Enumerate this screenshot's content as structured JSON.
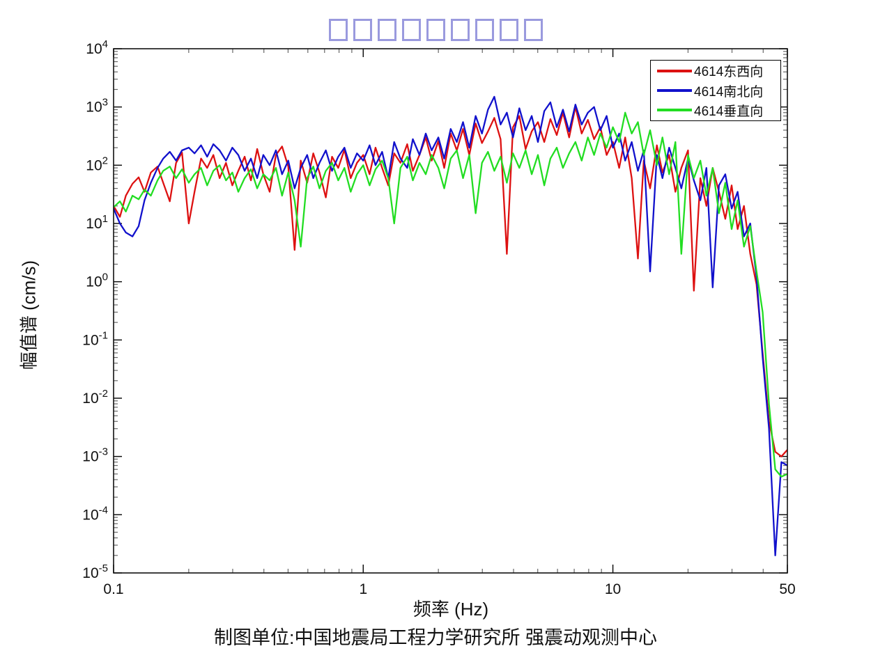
{
  "title": {
    "text": "",
    "note": "title rendered as missing-glyph boxes",
    "glyph_box_count": 9,
    "glyph_box_color": "#9a9ade"
  },
  "axes": {
    "xlabel": "频率 (Hz)",
    "ylabel": "幅值谱 (cm/s)"
  },
  "caption": "制图单位:中国地震局工程力学研究所 强震动观测中心",
  "legend": {
    "entries": [
      {
        "label": "4614东西向",
        "color": "#dd1111"
      },
      {
        "label": "4614南北向",
        "color": "#1111cc"
      },
      {
        "label": "4614垂直向",
        "color": "#22dd22"
      }
    ]
  },
  "colors": {
    "axis": "#111111",
    "minor_tick": "#666666",
    "text": "#111111",
    "background": "#ffffff"
  },
  "chart_data": {
    "type": "line",
    "title": "",
    "xlabel": "频率 (Hz)",
    "ylabel": "幅值谱 (cm/s)",
    "x_scale": "log",
    "y_scale": "log",
    "xlim": [
      0.1,
      50
    ],
    "ylim": [
      1e-05,
      10000
    ],
    "grid": false,
    "legend_position": "top-right",
    "x_major_ticks": [
      0.1,
      1,
      10,
      50
    ],
    "x_tick_labels": [
      "0.1",
      "1",
      "10",
      "50"
    ],
    "y_tick_exponents": [
      4,
      3,
      2,
      1,
      0,
      -1,
      -2,
      -3,
      -4,
      -5
    ],
    "frequencies_hz": [
      0.1,
      0.106,
      0.112,
      0.119,
      0.126,
      0.133,
      0.141,
      0.15,
      0.158,
      0.168,
      0.178,
      0.188,
      0.2,
      0.211,
      0.224,
      0.237,
      0.251,
      0.266,
      0.282,
      0.299,
      0.316,
      0.335,
      0.355,
      0.376,
      0.398,
      0.422,
      0.447,
      0.473,
      0.501,
      0.531,
      0.562,
      0.596,
      0.631,
      0.668,
      0.708,
      0.75,
      0.794,
      0.841,
      0.891,
      0.944,
      1.0,
      1.06,
      1.12,
      1.19,
      1.26,
      1.33,
      1.41,
      1.5,
      1.58,
      1.68,
      1.78,
      1.88,
      2.0,
      2.11,
      2.24,
      2.37,
      2.51,
      2.66,
      2.82,
      2.99,
      3.16,
      3.35,
      3.55,
      3.76,
      3.98,
      4.22,
      4.47,
      4.73,
      5.01,
      5.31,
      5.62,
      5.96,
      6.31,
      6.68,
      7.08,
      7.5,
      7.94,
      8.41,
      8.91,
      9.44,
      10.0,
      10.6,
      11.2,
      11.9,
      12.6,
      13.3,
      14.1,
      15.0,
      15.8,
      16.8,
      17.8,
      18.8,
      20.0,
      21.1,
      22.4,
      23.7,
      25.1,
      26.6,
      28.2,
      29.9,
      31.6,
      33.5,
      35.5,
      37.6,
      39.8,
      42.2,
      44.7,
      47.3,
      50.0
    ],
    "series": [
      {
        "name": "4614东西向",
        "color": "#dd1111",
        "values": [
          20,
          13,
          30,
          48,
          62,
          35,
          75,
          95,
          50,
          24,
          110,
          165,
          10,
          35,
          130,
          90,
          150,
          60,
          110,
          45,
          80,
          140,
          55,
          190,
          70,
          35,
          150,
          210,
          95,
          3.5,
          120,
          50,
          160,
          75,
          28,
          140,
          90,
          185,
          60,
          110,
          150,
          70,
          200,
          90,
          45,
          160,
          110,
          230,
          80,
          150,
          300,
          120,
          260,
          90,
          350,
          180,
          420,
          150,
          520,
          240,
          380,
          650,
          280,
          3,
          450,
          700,
          190,
          380,
          550,
          250,
          620,
          330,
          800,
          300,
          1000,
          350,
          600,
          280,
          450,
          150,
          250,
          90,
          300,
          60,
          2.5,
          120,
          40,
          220,
          75,
          150,
          35,
          90,
          180,
          0.7,
          60,
          20,
          90,
          35,
          12,
          45,
          8,
          20,
          3,
          0.9,
          0.06,
          0.004,
          0.0012,
          0.001,
          0.0013
        ]
      },
      {
        "name": "4614南北向",
        "color": "#1111cc",
        "values": [
          18,
          10,
          7,
          6,
          9,
          25,
          50,
          90,
          130,
          170,
          120,
          180,
          200,
          160,
          220,
          140,
          230,
          180,
          120,
          200,
          150,
          80,
          130,
          60,
          150,
          100,
          180,
          70,
          120,
          40,
          90,
          150,
          60,
          110,
          180,
          80,
          140,
          200,
          90,
          160,
          120,
          220,
          100,
          170,
          60,
          250,
          130,
          90,
          280,
          150,
          350,
          180,
          300,
          130,
          420,
          250,
          550,
          200,
          700,
          350,
          900,
          1500,
          500,
          800,
          300,
          950,
          400,
          700,
          250,
          850,
          1200,
          450,
          900,
          380,
          1100,
          500,
          800,
          1000,
          400,
          700,
          200,
          350,
          120,
          250,
          80,
          180,
          1.5,
          150,
          60,
          200,
          90,
          40,
          130,
          55,
          25,
          90,
          0.8,
          45,
          70,
          18,
          35,
          6,
          10,
          1.2,
          0.05,
          0.003,
          2e-05,
          0.0008,
          0.0007
        ]
      },
      {
        "name": "4614垂直向",
        "color": "#22dd22",
        "values": [
          19,
          24,
          16,
          30,
          26,
          38,
          30,
          55,
          80,
          95,
          60,
          85,
          50,
          70,
          90,
          45,
          80,
          100,
          55,
          75,
          35,
          60,
          85,
          40,
          70,
          55,
          90,
          30,
          75,
          25,
          4,
          60,
          95,
          40,
          80,
          110,
          55,
          90,
          35,
          70,
          100,
          45,
          85,
          120,
          60,
          10,
          90,
          140,
          55,
          110,
          70,
          150,
          90,
          40,
          130,
          180,
          60,
          150,
          15,
          110,
          170,
          80,
          140,
          50,
          160,
          90,
          180,
          70,
          150,
          45,
          130,
          200,
          90,
          160,
          250,
          120,
          300,
          150,
          350,
          200,
          450,
          250,
          800,
          350,
          550,
          150,
          400,
          100,
          300,
          70,
          250,
          3,
          150,
          60,
          120,
          30,
          90,
          15,
          50,
          8,
          25,
          4,
          9,
          1.5,
          0.3,
          0.008,
          0.0006,
          0.00045,
          0.0005
        ]
      }
    ]
  }
}
